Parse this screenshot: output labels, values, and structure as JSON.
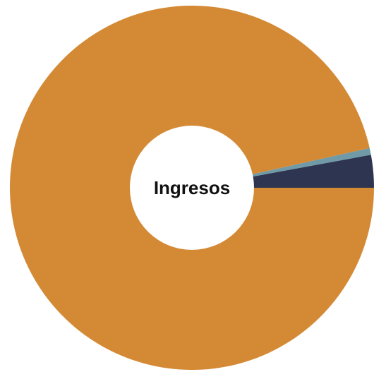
{
  "chart_data": {
    "type": "pie",
    "center_label": "Ingresos",
    "slices": [
      {
        "value": 2.9,
        "color": "#2e3550"
      },
      {
        "value": 0.6,
        "color": "#6f9aa6"
      },
      {
        "value": 96.5,
        "color": "#d48a35"
      }
    ]
  }
}
